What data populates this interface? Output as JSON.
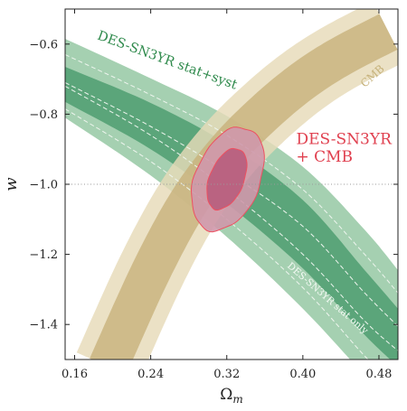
{
  "chart_data": {
    "type": "contour",
    "xlabel": "Ω",
    "xlabel_sub": "m",
    "ylabel": "w",
    "xlim": [
      0.15,
      0.5
    ],
    "ylim": [
      -1.5,
      -0.5
    ],
    "xticks": [
      0.16,
      0.24,
      0.32,
      0.4,
      0.48
    ],
    "xtick_labels": [
      "0.16",
      "0.24",
      "0.32",
      "0.40",
      "0.48"
    ],
    "yticks": [
      -1.4,
      -1.2,
      -1.0,
      -0.8,
      -0.6
    ],
    "ytick_labels": [
      "−1.4",
      "−1.2",
      "−1.0",
      "−0.8",
      "−0.6"
    ],
    "reference_line": {
      "w": -1.0,
      "style": "dotted"
    },
    "colors": {
      "sn_outer": "#a5d0b1",
      "sn_inner": "#5ba57a",
      "sn_text": "#2f8a4c",
      "cmb_outer": "#e7dab8",
      "cmb_inner": "#c8b27c",
      "cmb_text": "#c6b27b",
      "joint_outer": "#cf98ab",
      "joint_inner": "#b8607e",
      "joint_line": "#ee5060",
      "joint_text": "#e0404f"
    },
    "contours": [
      {
        "name": "SN stat+syst 68%",
        "x": [
          0.15,
          0.24,
          0.32,
          0.4,
          0.465,
          0.5
        ],
        "w_upper": [
          -0.665,
          -0.768,
          -0.885,
          -1.045,
          -1.245,
          -1.355
        ],
        "w_lower": [
          -0.765,
          -0.9,
          -1.055,
          -1.24,
          -1.43,
          -1.52
        ]
      },
      {
        "name": "SN stat+syst 95%",
        "x": [
          0.15,
          0.24,
          0.32,
          0.4,
          0.465,
          0.5
        ],
        "w_upper": [
          -0.585,
          -0.698,
          -0.805,
          -0.95,
          -1.13,
          -1.245
        ],
        "w_lower": [
          -0.81,
          -0.975,
          -1.15,
          -1.355,
          -1.545,
          -1.64
        ]
      },
      {
        "name": "CMB 95%",
        "x": [
          0.195,
          0.24,
          0.28,
          0.32,
          0.36,
          0.4,
          0.44,
          0.49
        ],
        "w_center": [
          -1.52,
          -1.25,
          -1.05,
          -0.905,
          -0.795,
          -0.705,
          -0.635,
          -0.565
        ],
        "half_width_inner": 0.021,
        "half_width_outer": 0.036
      },
      {
        "name": "DES-SN3YR + CMB 68%",
        "center": [
          0.32,
          -0.985
        ],
        "half_width": [
          0.018,
          0.092
        ],
        "angle_deg": 22
      },
      {
        "name": "DES-SN3YR + CMB 95%",
        "center": [
          0.321,
          -0.985
        ],
        "half_width": [
          0.034,
          0.155
        ],
        "angle_deg": 22
      },
      {
        "name": "SN stat only (dashed)",
        "style": "dashed",
        "x": [
          0.15,
          0.24,
          0.32,
          0.4,
          0.465,
          0.5
        ],
        "w_upper": [
          -0.71,
          -0.835,
          -0.965,
          -1.12,
          -1.31,
          -1.405
        ],
        "w_lower": [
          -0.72,
          -0.86,
          -1.015,
          -1.2,
          -1.39,
          -1.475
        ],
        "w_outer_upper": [
          -0.63,
          -0.745,
          -0.86,
          -1.015,
          -1.2,
          -1.31
        ],
        "w_outer_lower": [
          -0.785,
          -0.935,
          -1.1,
          -1.295,
          -1.49,
          -1.585
        ]
      }
    ],
    "annotations": {
      "sn_syst": "DES-SN3YR stat+syst",
      "cmb": "CMB",
      "joint_line1": "DES-SN3YR",
      "joint_line2": "+ CMB",
      "sn_stat": "DES-SN3YR stat only"
    }
  }
}
